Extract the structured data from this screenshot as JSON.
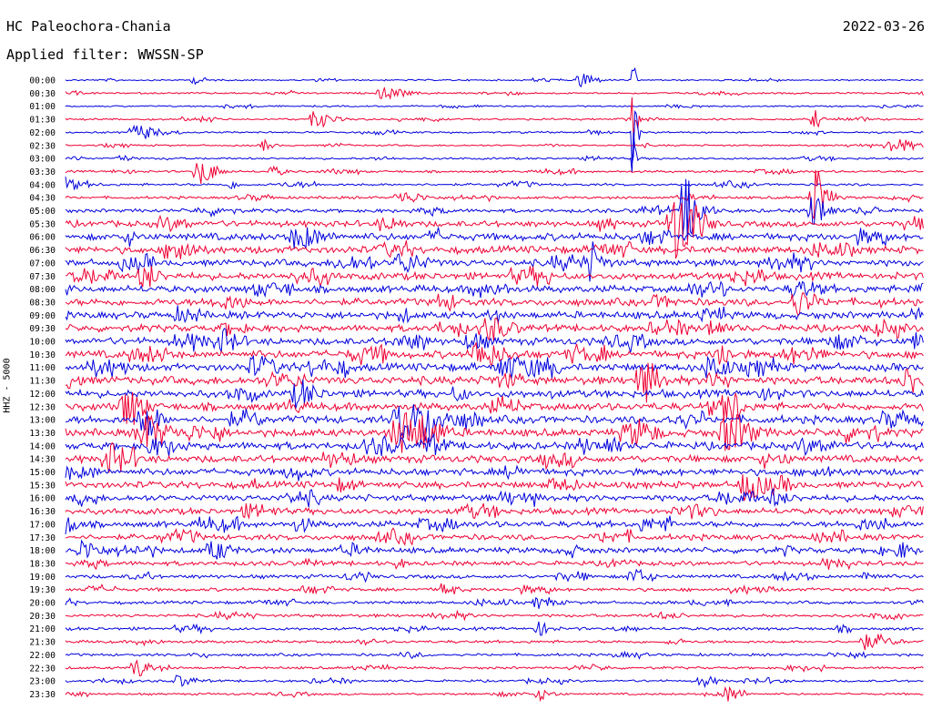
{
  "header": {
    "station": "HC Paleochora-Chania",
    "date": "2022-03-26",
    "filter": "Applied filter: WWSSN-SP"
  },
  "colors": {
    "even_trace": "#0000dd",
    "odd_trace": "#ee0033",
    "background": "#ffffff"
  },
  "chart_data": {
    "type": "line",
    "title": "HC Paleochora-Chania",
    "subtitle": "Applied filter: WWSSN-SP",
    "ylabel": "HHZ - 5000",
    "xlabel": "",
    "row_labels": [
      "00:00",
      "00:30",
      "01:00",
      "01:30",
      "02:00",
      "02:30",
      "03:00",
      "03:30",
      "04:00",
      "04:30",
      "05:00",
      "05:30",
      "06:00",
      "06:30",
      "07:00",
      "07:30",
      "08:00",
      "08:30",
      "09:00",
      "09:30",
      "10:00",
      "10:30",
      "11:00",
      "11:30",
      "12:00",
      "12:30",
      "13:00",
      "13:30",
      "14:00",
      "14:30",
      "15:00",
      "15:30",
      "16:00",
      "16:30",
      "17:00",
      "17:30",
      "18:00",
      "18:30",
      "19:00",
      "19:30",
      "20:00",
      "20:30",
      "21:00",
      "21:30",
      "22:00",
      "22:30",
      "23:00",
      "23:30"
    ],
    "noise_level_per_row": [
      0.8,
      0.9,
      0.8,
      1.0,
      1.0,
      0.9,
      1.1,
      1.2,
      1.3,
      1.4,
      2.0,
      3.2,
      3.8,
      3.8,
      3.6,
      3.8,
      3.6,
      3.8,
      3.8,
      3.6,
      3.8,
      4.0,
      4.0,
      4.2,
      4.0,
      4.0,
      4.0,
      4.0,
      4.0,
      3.8,
      3.6,
      3.6,
      3.4,
      3.2,
      3.2,
      3.0,
      3.0,
      2.4,
      2.0,
      1.8,
      1.6,
      1.6,
      1.6,
      1.5,
      1.4,
      1.3,
      1.2,
      1.1
    ],
    "events": [
      {
        "row": 0,
        "x": 0.6,
        "amp": 10,
        "width": 0.012
      },
      {
        "row": 0,
        "x": 0.66,
        "amp": 18,
        "width": 0.003
      },
      {
        "row": 0,
        "x": 0.15,
        "amp": 4,
        "width": 0.01
      },
      {
        "row": 1,
        "x": 0.37,
        "amp": 6,
        "width": 0.02
      },
      {
        "row": 3,
        "x": 0.29,
        "amp": 9,
        "width": 0.015
      },
      {
        "row": 3,
        "x": 0.66,
        "amp": 30,
        "width": 0.004
      },
      {
        "row": 3,
        "x": 0.87,
        "amp": 12,
        "width": 0.006
      },
      {
        "row": 4,
        "x": 0.08,
        "amp": 8,
        "width": 0.015
      },
      {
        "row": 4,
        "x": 0.66,
        "amp": 55,
        "width": 0.004
      },
      {
        "row": 5,
        "x": 0.23,
        "amp": 6,
        "width": 0.008
      },
      {
        "row": 5,
        "x": 0.96,
        "amp": 8,
        "width": 0.02
      },
      {
        "row": 6,
        "x": 0.66,
        "amp": 30,
        "width": 0.003
      },
      {
        "row": 6,
        "x": 0.06,
        "amp": 4,
        "width": 0.01
      },
      {
        "row": 7,
        "x": 0.155,
        "amp": 14,
        "width": 0.015
      },
      {
        "row": 7,
        "x": 0.24,
        "amp": 5,
        "width": 0.01
      },
      {
        "row": 8,
        "x": 0.0,
        "amp": 6,
        "width": 0.008
      },
      {
        "row": 8,
        "x": 0.19,
        "amp": 4,
        "width": 0.01
      },
      {
        "row": 9,
        "x": 0.39,
        "amp": 6,
        "width": 0.02
      },
      {
        "row": 9,
        "x": 0.87,
        "amp": 35,
        "width": 0.012
      },
      {
        "row": 10,
        "x": 0.72,
        "amp": 35,
        "width": 0.015
      },
      {
        "row": 10,
        "x": 0.87,
        "amp": 20,
        "width": 0.012
      },
      {
        "row": 11,
        "x": 0.71,
        "amp": 40,
        "width": 0.02
      },
      {
        "row": 12,
        "x": 0.27,
        "amp": 12,
        "width": 0.02
      },
      {
        "row": 13,
        "x": 0.13,
        "amp": 8,
        "width": 0.015
      },
      {
        "row": 14,
        "x": 0.61,
        "amp": 16,
        "width": 0.012
      },
      {
        "row": 14,
        "x": 0.39,
        "amp": 10,
        "width": 0.02
      },
      {
        "row": 15,
        "x": 0.09,
        "amp": 14,
        "width": 0.012
      },
      {
        "row": 16,
        "x": 0.85,
        "amp": 8,
        "width": 0.02
      },
      {
        "row": 17,
        "x": 0.85,
        "amp": 14,
        "width": 0.015
      },
      {
        "row": 19,
        "x": 0.49,
        "amp": 12,
        "width": 0.02
      },
      {
        "row": 19,
        "x": 0.75,
        "amp": 10,
        "width": 0.01
      },
      {
        "row": 20,
        "x": 0.18,
        "amp": 12,
        "width": 0.015
      },
      {
        "row": 20,
        "x": 0.47,
        "amp": 8,
        "width": 0.015
      },
      {
        "row": 20,
        "x": 0.99,
        "amp": 8,
        "width": 0.015
      },
      {
        "row": 21,
        "x": 0.48,
        "amp": 14,
        "width": 0.02
      },
      {
        "row": 21,
        "x": 0.76,
        "amp": 14,
        "width": 0.01
      },
      {
        "row": 22,
        "x": 0.22,
        "amp": 10,
        "width": 0.02
      },
      {
        "row": 22,
        "x": 0.51,
        "amp": 12,
        "width": 0.02
      },
      {
        "row": 22,
        "x": 0.75,
        "amp": 14,
        "width": 0.015
      },
      {
        "row": 23,
        "x": 0.67,
        "amp": 22,
        "width": 0.015
      },
      {
        "row": 23,
        "x": 0.98,
        "amp": 14,
        "width": 0.015
      },
      {
        "row": 24,
        "x": 0.27,
        "amp": 14,
        "width": 0.015
      },
      {
        "row": 25,
        "x": 0.07,
        "amp": 22,
        "width": 0.015
      },
      {
        "row": 25,
        "x": 0.77,
        "amp": 20,
        "width": 0.01
      },
      {
        "row": 26,
        "x": 0.09,
        "amp": 24,
        "width": 0.012
      },
      {
        "row": 26,
        "x": 0.39,
        "amp": 22,
        "width": 0.02
      },
      {
        "row": 26,
        "x": 0.42,
        "amp": 20,
        "width": 0.012
      },
      {
        "row": 27,
        "x": 0.09,
        "amp": 20,
        "width": 0.02
      },
      {
        "row": 27,
        "x": 0.39,
        "amp": 18,
        "width": 0.03
      },
      {
        "row": 27,
        "x": 0.77,
        "amp": 22,
        "width": 0.02
      },
      {
        "row": 27,
        "x": 0.66,
        "amp": 8,
        "width": 0.01
      },
      {
        "row": 28,
        "x": 0.42,
        "amp": 10,
        "width": 0.015
      },
      {
        "row": 29,
        "x": 0.05,
        "amp": 10,
        "width": 0.015
      },
      {
        "row": 31,
        "x": 0.79,
        "amp": 16,
        "width": 0.015
      },
      {
        "row": 32,
        "x": 0.82,
        "amp": 8,
        "width": 0.015
      },
      {
        "row": 34,
        "x": 0.0,
        "amp": 10,
        "width": 0.01
      },
      {
        "row": 34,
        "x": 0.27,
        "amp": 8,
        "width": 0.01
      },
      {
        "row": 36,
        "x": 0.02,
        "amp": 10,
        "width": 0.015
      },
      {
        "row": 36,
        "x": 0.17,
        "amp": 10,
        "width": 0.015
      },
      {
        "row": 36,
        "x": 0.97,
        "amp": 8,
        "width": 0.01
      },
      {
        "row": 38,
        "x": 0.66,
        "amp": 8,
        "width": 0.015
      },
      {
        "row": 38,
        "x": 0.93,
        "amp": 6,
        "width": 0.01
      },
      {
        "row": 39,
        "x": 0.44,
        "amp": 8,
        "width": 0.01
      },
      {
        "row": 40,
        "x": 0.55,
        "amp": 6,
        "width": 0.015
      },
      {
        "row": 42,
        "x": 0.55,
        "amp": 7,
        "width": 0.01
      },
      {
        "row": 43,
        "x": 0.93,
        "amp": 8,
        "width": 0.015
      },
      {
        "row": 45,
        "x": 0.08,
        "amp": 10,
        "width": 0.01
      },
      {
        "row": 46,
        "x": 0.13,
        "amp": 6,
        "width": 0.015
      },
      {
        "row": 46,
        "x": 0.74,
        "amp": 6,
        "width": 0.012
      },
      {
        "row": 47,
        "x": 0.55,
        "amp": 6,
        "width": 0.012
      },
      {
        "row": 47,
        "x": 0.77,
        "amp": 8,
        "width": 0.012
      }
    ],
    "grid": false
  }
}
